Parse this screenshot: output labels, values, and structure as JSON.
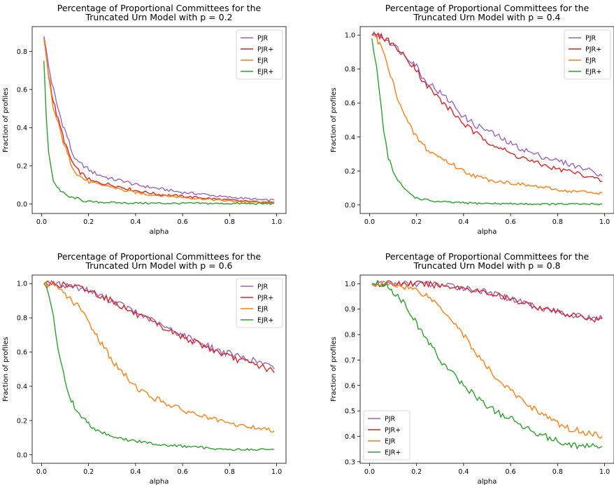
{
  "series_colors": {
    "PJR": "#9467bd",
    "PJR+": "#d62728",
    "EJR": "#ff7f0e",
    "EJR+": "#2ca02c"
  },
  "chart_data": [
    {
      "type": "line",
      "title_lines": [
        "Percentage of Proportional Committees for the",
        "Truncated Urn Model with p = 0.2"
      ],
      "xlabel": "alpha",
      "ylabel": "Fraction of profiles",
      "xlim": [
        -0.04,
        1.04
      ],
      "ylim": [
        -0.05,
        0.93
      ],
      "xticks": [
        0.0,
        0.2,
        0.4,
        0.6,
        0.8,
        1.0
      ],
      "xtick_labels": [
        "0.0",
        "0.2",
        "0.4",
        "0.6",
        "0.8",
        "1.0"
      ],
      "yticks": [
        0.0,
        0.2,
        0.4,
        0.6,
        0.8
      ],
      "ytick_labels": [
        "0.0",
        "0.2",
        "0.4",
        "0.6",
        "0.8"
      ],
      "legend": "top-right",
      "grid": false,
      "series": [
        {
          "name": "PJR",
          "x": [
            0.01,
            0.03,
            0.05,
            0.07,
            0.09,
            0.11,
            0.13,
            0.15,
            0.18,
            0.21,
            0.25,
            0.3,
            0.35,
            0.4,
            0.45,
            0.5,
            0.55,
            0.6,
            0.65,
            0.7,
            0.75,
            0.8,
            0.85,
            0.9,
            0.95,
            0.99
          ],
          "y": [
            0.88,
            0.72,
            0.6,
            0.5,
            0.42,
            0.35,
            0.27,
            0.22,
            0.2,
            0.17,
            0.15,
            0.13,
            0.12,
            0.1,
            0.09,
            0.08,
            0.07,
            0.06,
            0.055,
            0.05,
            0.04,
            0.035,
            0.03,
            0.025,
            0.02,
            0.02
          ]
        },
        {
          "name": "PJR+",
          "x": [
            0.01,
            0.03,
            0.05,
            0.07,
            0.09,
            0.11,
            0.13,
            0.15,
            0.18,
            0.21,
            0.25,
            0.3,
            0.35,
            0.4,
            0.45,
            0.5,
            0.55,
            0.6,
            0.65,
            0.7,
            0.75,
            0.8,
            0.85,
            0.9,
            0.95,
            0.99
          ],
          "y": [
            0.87,
            0.68,
            0.54,
            0.44,
            0.36,
            0.28,
            0.22,
            0.18,
            0.15,
            0.12,
            0.11,
            0.1,
            0.085,
            0.07,
            0.06,
            0.05,
            0.045,
            0.04,
            0.035,
            0.03,
            0.025,
            0.02,
            0.015,
            0.012,
            0.01,
            0.01
          ]
        },
        {
          "name": "EJR",
          "x": [
            0.01,
            0.03,
            0.05,
            0.07,
            0.09,
            0.11,
            0.13,
            0.15,
            0.18,
            0.21,
            0.25,
            0.3,
            0.35,
            0.4,
            0.45,
            0.5,
            0.55,
            0.6,
            0.65,
            0.7,
            0.75,
            0.8,
            0.85,
            0.9,
            0.95,
            0.99
          ],
          "y": [
            0.87,
            0.66,
            0.5,
            0.42,
            0.34,
            0.26,
            0.2,
            0.16,
            0.13,
            0.11,
            0.1,
            0.09,
            0.07,
            0.06,
            0.05,
            0.045,
            0.04,
            0.035,
            0.03,
            0.025,
            0.02,
            0.015,
            0.012,
            0.01,
            0.008,
            0.01
          ]
        },
        {
          "name": "EJR+",
          "x": [
            0.01,
            0.02,
            0.03,
            0.04,
            0.05,
            0.06,
            0.08,
            0.1,
            0.12,
            0.15,
            0.18,
            0.22,
            0.28,
            0.35,
            0.45,
            0.55,
            0.65,
            0.75,
            0.85,
            0.99
          ],
          "y": [
            0.75,
            0.45,
            0.28,
            0.2,
            0.12,
            0.1,
            0.07,
            0.05,
            0.035,
            0.03,
            0.015,
            0.01,
            0.008,
            0.005,
            0.004,
            0.003,
            0.003,
            0.002,
            0.002,
            0.001
          ]
        }
      ]
    },
    {
      "type": "line",
      "title_lines": [
        "Percentage of Proportional Committees for the",
        "Truncated Urn Model with p = 0.4"
      ],
      "xlabel": "alpha",
      "ylabel": "Fraction of profiles",
      "xlim": [
        -0.04,
        1.04
      ],
      "ylim": [
        -0.05,
        1.05
      ],
      "xticks": [
        0.0,
        0.2,
        0.4,
        0.6,
        0.8,
        1.0
      ],
      "xtick_labels": [
        "0.0",
        "0.2",
        "0.4",
        "0.6",
        "0.8",
        "1.0"
      ],
      "yticks": [
        0.0,
        0.2,
        0.4,
        0.6,
        0.8,
        1.0
      ],
      "ytick_labels": [
        "0.0",
        "0.2",
        "0.4",
        "0.6",
        "0.8",
        "1.0"
      ],
      "legend": "top-right",
      "grid": false,
      "series": [
        {
          "name": "PJR",
          "x": [
            0.01,
            0.03,
            0.05,
            0.08,
            0.1,
            0.12,
            0.15,
            0.18,
            0.2,
            0.23,
            0.26,
            0.3,
            0.35,
            0.4,
            0.45,
            0.5,
            0.55,
            0.6,
            0.65,
            0.7,
            0.75,
            0.8,
            0.85,
            0.9,
            0.95,
            0.99
          ],
          "y": [
            1.0,
            1.0,
            0.99,
            0.97,
            0.94,
            0.92,
            0.88,
            0.85,
            0.82,
            0.74,
            0.71,
            0.66,
            0.6,
            0.52,
            0.47,
            0.44,
            0.4,
            0.36,
            0.33,
            0.3,
            0.28,
            0.26,
            0.24,
            0.22,
            0.2,
            0.17
          ]
        },
        {
          "name": "PJR+",
          "x": [
            0.01,
            0.03,
            0.05,
            0.08,
            0.1,
            0.12,
            0.15,
            0.18,
            0.2,
            0.23,
            0.26,
            0.3,
            0.35,
            0.4,
            0.45,
            0.5,
            0.55,
            0.6,
            0.65,
            0.7,
            0.75,
            0.8,
            0.85,
            0.9,
            0.95,
            0.99
          ],
          "y": [
            1.0,
            1.0,
            0.99,
            0.97,
            0.94,
            0.92,
            0.87,
            0.83,
            0.8,
            0.72,
            0.68,
            0.62,
            0.55,
            0.48,
            0.42,
            0.38,
            0.34,
            0.3,
            0.28,
            0.25,
            0.23,
            0.21,
            0.2,
            0.18,
            0.16,
            0.14
          ]
        },
        {
          "name": "EJR",
          "x": [
            0.01,
            0.03,
            0.05,
            0.07,
            0.09,
            0.11,
            0.13,
            0.15,
            0.18,
            0.21,
            0.25,
            0.3,
            0.35,
            0.4,
            0.45,
            0.5,
            0.55,
            0.6,
            0.65,
            0.7,
            0.75,
            0.8,
            0.85,
            0.9,
            0.95,
            0.99
          ],
          "y": [
            1.0,
            0.98,
            0.93,
            0.85,
            0.76,
            0.67,
            0.6,
            0.52,
            0.44,
            0.38,
            0.32,
            0.28,
            0.24,
            0.2,
            0.17,
            0.15,
            0.14,
            0.13,
            0.12,
            0.11,
            0.1,
            0.09,
            0.08,
            0.08,
            0.07,
            0.07
          ]
        },
        {
          "name": "EJR+",
          "x": [
            0.01,
            0.02,
            0.03,
            0.04,
            0.05,
            0.06,
            0.07,
            0.08,
            0.1,
            0.12,
            0.14,
            0.16,
            0.18,
            0.2,
            0.24,
            0.28,
            0.35,
            0.45,
            0.55,
            0.65,
            0.75,
            0.85,
            0.99
          ],
          "y": [
            0.98,
            0.9,
            0.82,
            0.7,
            0.56,
            0.45,
            0.36,
            0.28,
            0.2,
            0.14,
            0.11,
            0.08,
            0.06,
            0.04,
            0.03,
            0.02,
            0.015,
            0.01,
            0.008,
            0.006,
            0.005,
            0.005,
            0.005
          ]
        }
      ]
    },
    {
      "type": "line",
      "title_lines": [
        "Percentage of Proportional Committees for the",
        "Truncated Urn Model with p = 0.6"
      ],
      "xlabel": "alpha",
      "ylabel": "Fraction of profiles",
      "xlim": [
        -0.04,
        1.04
      ],
      "ylim": [
        -0.05,
        1.05
      ],
      "xticks": [
        0.0,
        0.2,
        0.4,
        0.6,
        0.8,
        1.0
      ],
      "xtick_labels": [
        "0.0",
        "0.2",
        "0.4",
        "0.6",
        "0.8",
        "1.0"
      ],
      "yticks": [
        0.0,
        0.2,
        0.4,
        0.6,
        0.8,
        1.0
      ],
      "ytick_labels": [
        "0.0",
        "0.2",
        "0.4",
        "0.6",
        "0.8",
        "1.0"
      ],
      "legend": "top-right",
      "grid": false,
      "series": [
        {
          "name": "PJR",
          "x": [
            0.01,
            0.05,
            0.1,
            0.15,
            0.2,
            0.25,
            0.3,
            0.35,
            0.4,
            0.45,
            0.5,
            0.55,
            0.6,
            0.65,
            0.7,
            0.75,
            0.8,
            0.85,
            0.9,
            0.95,
            0.99
          ],
          "y": [
            1.0,
            1.0,
            0.99,
            0.98,
            0.96,
            0.93,
            0.9,
            0.87,
            0.83,
            0.8,
            0.76,
            0.73,
            0.7,
            0.67,
            0.64,
            0.61,
            0.59,
            0.57,
            0.55,
            0.53,
            0.5
          ]
        },
        {
          "name": "PJR+",
          "x": [
            0.01,
            0.05,
            0.1,
            0.15,
            0.2,
            0.25,
            0.3,
            0.35,
            0.4,
            0.45,
            0.5,
            0.55,
            0.6,
            0.65,
            0.7,
            0.75,
            0.8,
            0.85,
            0.9,
            0.95,
            0.99
          ],
          "y": [
            1.0,
            1.0,
            0.99,
            0.98,
            0.96,
            0.93,
            0.9,
            0.86,
            0.82,
            0.79,
            0.75,
            0.72,
            0.69,
            0.66,
            0.63,
            0.6,
            0.57,
            0.55,
            0.53,
            0.51,
            0.48
          ]
        },
        {
          "name": "EJR",
          "x": [
            0.01,
            0.04,
            0.07,
            0.1,
            0.13,
            0.16,
            0.19,
            0.22,
            0.25,
            0.28,
            0.31,
            0.35,
            0.4,
            0.45,
            0.5,
            0.55,
            0.6,
            0.65,
            0.7,
            0.75,
            0.8,
            0.85,
            0.9,
            0.95,
            0.99
          ],
          "y": [
            1.0,
            0.99,
            0.97,
            0.94,
            0.9,
            0.86,
            0.8,
            0.73,
            0.66,
            0.6,
            0.53,
            0.47,
            0.4,
            0.35,
            0.32,
            0.29,
            0.26,
            0.24,
            0.22,
            0.2,
            0.18,
            0.17,
            0.16,
            0.15,
            0.14
          ]
        },
        {
          "name": "EJR+",
          "x": [
            0.01,
            0.02,
            0.03,
            0.04,
            0.05,
            0.06,
            0.07,
            0.08,
            0.1,
            0.12,
            0.14,
            0.16,
            0.18,
            0.2,
            0.23,
            0.26,
            0.3,
            0.35,
            0.4,
            0.5,
            0.6,
            0.7,
            0.8,
            0.9,
            0.99
          ],
          "y": [
            1.0,
            0.97,
            0.93,
            0.87,
            0.8,
            0.72,
            0.63,
            0.55,
            0.43,
            0.34,
            0.28,
            0.24,
            0.21,
            0.18,
            0.15,
            0.13,
            0.11,
            0.09,
            0.08,
            0.06,
            0.05,
            0.04,
            0.03,
            0.03,
            0.03
          ]
        }
      ]
    },
    {
      "type": "line",
      "title_lines": [
        "Percentage of Proportional Committees for the",
        "Truncated Urn Model with p = 0.8"
      ],
      "xlabel": "alpha",
      "ylabel": "Fraction of profiles",
      "xlim": [
        -0.04,
        1.04
      ],
      "ylim": [
        0.294,
        1.034
      ],
      "xticks": [
        0.0,
        0.2,
        0.4,
        0.6,
        0.8,
        1.0
      ],
      "xtick_labels": [
        "0.0",
        "0.2",
        "0.4",
        "0.6",
        "0.8",
        "1.0"
      ],
      "yticks": [
        0.3,
        0.4,
        0.5,
        0.6,
        0.7,
        0.8,
        0.9,
        1.0
      ],
      "ytick_labels": [
        "0.3",
        "0.4",
        "0.5",
        "0.6",
        "0.7",
        "0.8",
        "0.9",
        "1.0"
      ],
      "legend": "bottom-left",
      "grid": false,
      "series": [
        {
          "name": "PJR",
          "x": [
            0.01,
            0.05,
            0.1,
            0.15,
            0.2,
            0.25,
            0.3,
            0.35,
            0.4,
            0.45,
            0.5,
            0.55,
            0.6,
            0.65,
            0.7,
            0.75,
            0.8,
            0.85,
            0.9,
            0.95,
            0.99
          ],
          "y": [
            1.0,
            1.0,
            1.0,
            1.0,
            1.0,
            0.998,
            0.995,
            0.99,
            0.985,
            0.975,
            0.965,
            0.955,
            0.94,
            0.93,
            0.915,
            0.9,
            0.89,
            0.88,
            0.87,
            0.865,
            0.865
          ]
        },
        {
          "name": "PJR+",
          "x": [
            0.01,
            0.05,
            0.1,
            0.15,
            0.2,
            0.25,
            0.3,
            0.35,
            0.4,
            0.45,
            0.5,
            0.55,
            0.6,
            0.65,
            0.7,
            0.75,
            0.8,
            0.85,
            0.9,
            0.95,
            0.99
          ],
          "y": [
            1.0,
            1.0,
            1.0,
            1.0,
            1.0,
            0.997,
            0.994,
            0.989,
            0.984,
            0.974,
            0.963,
            0.953,
            0.938,
            0.928,
            0.913,
            0.898,
            0.888,
            0.878,
            0.868,
            0.862,
            0.862
          ]
        },
        {
          "name": "EJR",
          "x": [
            0.01,
            0.05,
            0.1,
            0.15,
            0.2,
            0.25,
            0.3,
            0.35,
            0.4,
            0.45,
            0.5,
            0.55,
            0.6,
            0.65,
            0.7,
            0.75,
            0.8,
            0.85,
            0.9,
            0.95,
            0.99
          ],
          "y": [
            1.0,
            1.0,
            0.995,
            0.99,
            0.975,
            0.95,
            0.91,
            0.86,
            0.8,
            0.73,
            0.67,
            0.62,
            0.58,
            0.54,
            0.51,
            0.48,
            0.45,
            0.43,
            0.42,
            0.41,
            0.4
          ]
        },
        {
          "name": "EJR+",
          "x": [
            0.01,
            0.05,
            0.08,
            0.1,
            0.12,
            0.15,
            0.18,
            0.2,
            0.23,
            0.26,
            0.3,
            0.35,
            0.4,
            0.45,
            0.5,
            0.55,
            0.6,
            0.65,
            0.7,
            0.75,
            0.8,
            0.85,
            0.9,
            0.95,
            0.99
          ],
          "y": [
            1.0,
            1.0,
            0.99,
            0.97,
            0.95,
            0.92,
            0.88,
            0.84,
            0.8,
            0.76,
            0.7,
            0.65,
            0.6,
            0.56,
            0.52,
            0.49,
            0.47,
            0.44,
            0.42,
            0.4,
            0.38,
            0.37,
            0.36,
            0.36,
            0.36
          ]
        }
      ]
    }
  ]
}
